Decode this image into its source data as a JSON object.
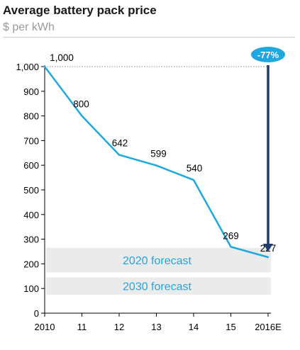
{
  "title": "Average battery pack price",
  "subtitle": "$ per kWh",
  "chart_data": {
    "type": "line",
    "title": "Average battery pack price",
    "ylabel": "$ per kWh",
    "xlabel": "",
    "categories": [
      "2010",
      "11",
      "12",
      "13",
      "14",
      "15",
      "2016E"
    ],
    "values": [
      1000,
      800,
      642,
      599,
      540,
      269,
      227
    ],
    "value_labels": [
      "1,000",
      "800",
      "642",
      "599",
      "540",
      "269",
      "227"
    ],
    "ylim": [
      0,
      1000
    ],
    "yticks": [
      0,
      100,
      200,
      300,
      400,
      500,
      600,
      700,
      800,
      900,
      1000
    ],
    "ytick_labels": [
      "0",
      "100",
      "200",
      "300",
      "400",
      "500",
      "600",
      "700",
      "800",
      "900",
      "1,000"
    ],
    "line_color": "#1ea8e0",
    "forecast_bands": [
      {
        "label": "2020 forecast",
        "range": [
          165,
          265
        ],
        "color": "#ebebeb"
      },
      {
        "label": "2030 forecast",
        "range": [
          75,
          145
        ],
        "color": "#ebebeb"
      }
    ],
    "annotation": {
      "label": "-77%",
      "from": 1000,
      "to": 227,
      "color": "#1ea8e0",
      "arrow_color": "#1e3d6b"
    },
    "grid": false
  }
}
